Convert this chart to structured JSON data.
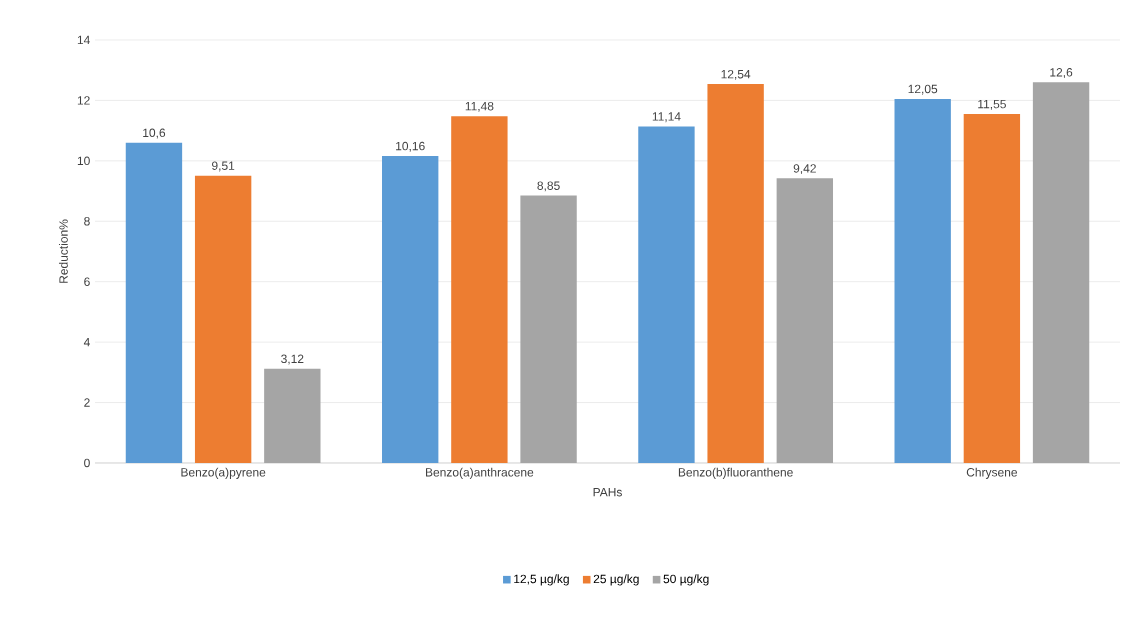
{
  "chart_data": {
    "type": "bar",
    "xlabel": "PAHs",
    "ylabel": "Reduction%",
    "categories": [
      "Benzo(a)pyrene",
      "Benzo(a)anthracene",
      "Benzo(b)fluoranthene",
      "Chrysene"
    ],
    "series": [
      {
        "name": "12,5 µg/kg",
        "color": "#5b9bd5",
        "values": [
          10.6,
          10.16,
          11.14,
          12.05
        ],
        "value_labels": [
          "10,6",
          "10,16",
          "11,14",
          "12,05"
        ]
      },
      {
        "name": "25 µg/kg",
        "color": "#ed7d31",
        "values": [
          9.51,
          11.48,
          12.54,
          11.55
        ],
        "value_labels": [
          "9,51",
          "11,48",
          "12,54",
          "11,55"
        ]
      },
      {
        "name": "50 µg/kg",
        "color": "#a5a5a5",
        "values": [
          3.12,
          8.85,
          9.42,
          12.6
        ],
        "value_labels": [
          "3,12",
          "8,85",
          "9,42",
          "12,6"
        ]
      }
    ],
    "ylim": [
      0,
      14
    ],
    "yticks": [
      0,
      2,
      4,
      6,
      8,
      10,
      12,
      14
    ],
    "grid": "y",
    "legend": "bottom"
  }
}
